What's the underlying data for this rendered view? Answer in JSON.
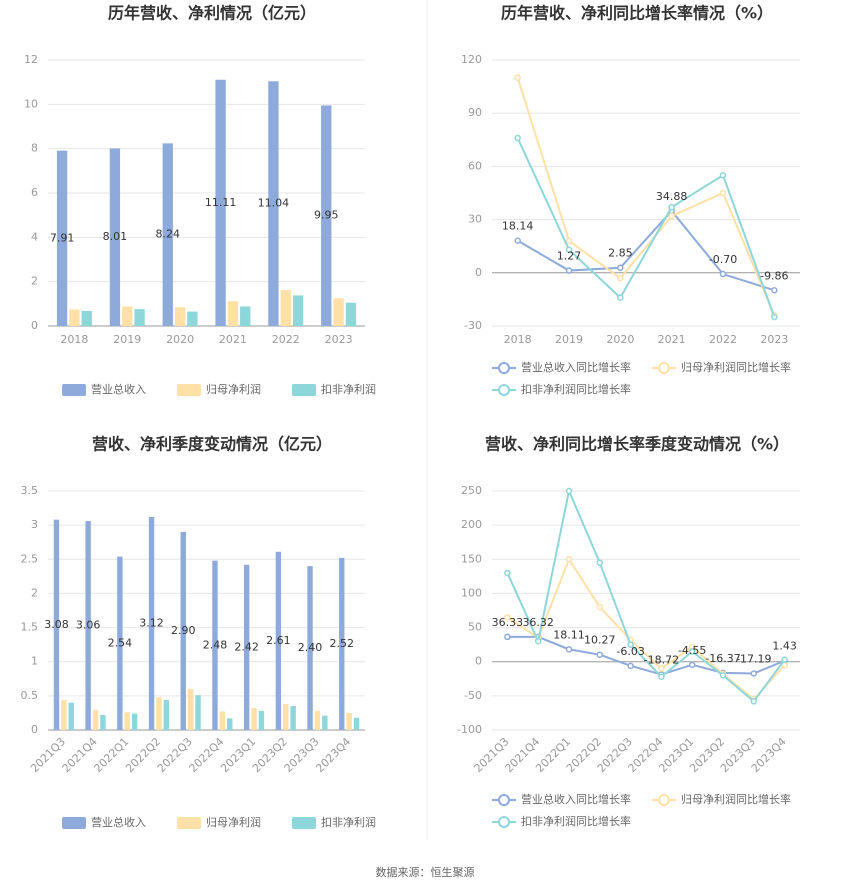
{
  "chart_data": [
    {
      "type": "bar",
      "title": "历年营收、净利情况（亿元）",
      "categories": [
        "2018",
        "2019",
        "2020",
        "2021",
        "2022",
        "2023"
      ],
      "series": [
        {
          "name": "营业总收入",
          "color": "#8eaadb",
          "values": [
            7.91,
            8.01,
            8.24,
            11.11,
            11.04,
            9.95
          ],
          "labels": true
        },
        {
          "name": "归母净利润",
          "color": "#ffe0a6",
          "values": [
            0.75,
            0.88,
            0.85,
            1.12,
            1.62,
            1.25
          ]
        },
        {
          "name": "扣非净利润",
          "color": "#8dd6d9",
          "values": [
            0.68,
            0.76,
            0.65,
            0.88,
            1.38,
            1.05
          ]
        }
      ],
      "ylim": [
        0,
        12
      ],
      "yticks": [
        0,
        2,
        4,
        6,
        8,
        10,
        12
      ],
      "grid": true
    },
    {
      "type": "line",
      "title": "历年营收、净利同比增长率情况（%）",
      "categories": [
        "2018",
        "2019",
        "2020",
        "2021",
        "2022",
        "2023"
      ],
      "series": [
        {
          "name": "营业总收入同比增长率",
          "color": "#8eaadb",
          "values": [
            18.14,
            1.27,
            2.85,
            34.88,
            -0.7,
            -9.86
          ],
          "value_labels": [
            "18.14",
            "1.27",
            "2.85",
            "34.88",
            "-0.70",
            "-9.86"
          ]
        },
        {
          "name": "归母净利润同比增长率",
          "color": "#ffe0a6",
          "values": [
            110,
            18,
            -3,
            32,
            45,
            -24
          ]
        },
        {
          "name": "扣非净利润同比增长率",
          "color": "#8dd6d9",
          "values": [
            76,
            13,
            -14,
            37,
            55,
            -25
          ]
        }
      ],
      "ylim": [
        -30,
        120
      ],
      "yticks": [
        -30,
        0,
        30,
        60,
        90,
        120
      ],
      "grid": true
    },
    {
      "type": "bar",
      "title": "营收、净利季度变动情况（亿元）",
      "categories": [
        "2021Q3",
        "2021Q4",
        "2022Q1",
        "2022Q2",
        "2022Q3",
        "2022Q4",
        "2023Q1",
        "2023Q2",
        "2023Q3",
        "2023Q4"
      ],
      "series": [
        {
          "name": "营业总收入",
          "color": "#8eaadb",
          "values": [
            3.08,
            3.06,
            2.54,
            3.12,
            2.9,
            2.48,
            2.42,
            2.61,
            2.4,
            2.52
          ],
          "value_labels": [
            "3.08",
            "3.06",
            "2.54",
            "3.12",
            "2.90",
            "2.48",
            "2.42",
            "2.61",
            "2.40",
            "2.52"
          ]
        },
        {
          "name": "归母净利润",
          "color": "#ffe0a6",
          "values": [
            0.44,
            0.29,
            0.26,
            0.48,
            0.6,
            0.27,
            0.32,
            0.38,
            0.28,
            0.25
          ]
        },
        {
          "name": "扣非净利润",
          "color": "#8dd6d9",
          "values": [
            0.4,
            0.22,
            0.24,
            0.44,
            0.51,
            0.17,
            0.28,
            0.35,
            0.21,
            0.18
          ]
        }
      ],
      "ylim": [
        0,
        3.5
      ],
      "yticks": [
        0,
        0.5,
        1,
        1.5,
        2,
        2.5,
        3,
        3.5
      ],
      "grid": true,
      "rotate_x_labels": true
    },
    {
      "type": "line",
      "title": "营收、净利同比增长率季度变动情况（%）",
      "categories": [
        "2021Q3",
        "2021Q4",
        "2022Q1",
        "2022Q2",
        "2022Q3",
        "2022Q4",
        "2023Q1",
        "2023Q2",
        "2023Q3",
        "2023Q4"
      ],
      "series": [
        {
          "name": "营业总收入同比增长率",
          "color": "#8eaadb",
          "values": [
            36.33,
            36.32,
            18.11,
            10.27,
            -6.03,
            -18.72,
            -4.55,
            -16.37,
            -17.19,
            1.43
          ],
          "value_labels": [
            "36.33",
            "36.32",
            "18.11",
            "10.27",
            "-6.03",
            "-18.72",
            "-4.55",
            "-16.37",
            "-17.19",
            "1.43"
          ]
        },
        {
          "name": "归母净利润同比增长率",
          "color": "#ffe0a6",
          "values": [
            65,
            35,
            150,
            80,
            32,
            -10,
            22,
            -18,
            -55,
            -5
          ]
        },
        {
          "name": "扣非净利润同比增长率",
          "color": "#8dd6d9",
          "values": [
            130,
            30,
            250,
            145,
            25,
            -22,
            15,
            -20,
            -58,
            3
          ]
        }
      ],
      "ylim": [
        -100,
        250
      ],
      "yticks": [
        -100,
        -50,
        0,
        50,
        100,
        150,
        200,
        250
      ],
      "grid": true,
      "rotate_x_labels": true
    }
  ],
  "source": "数据来源：恒生聚源"
}
